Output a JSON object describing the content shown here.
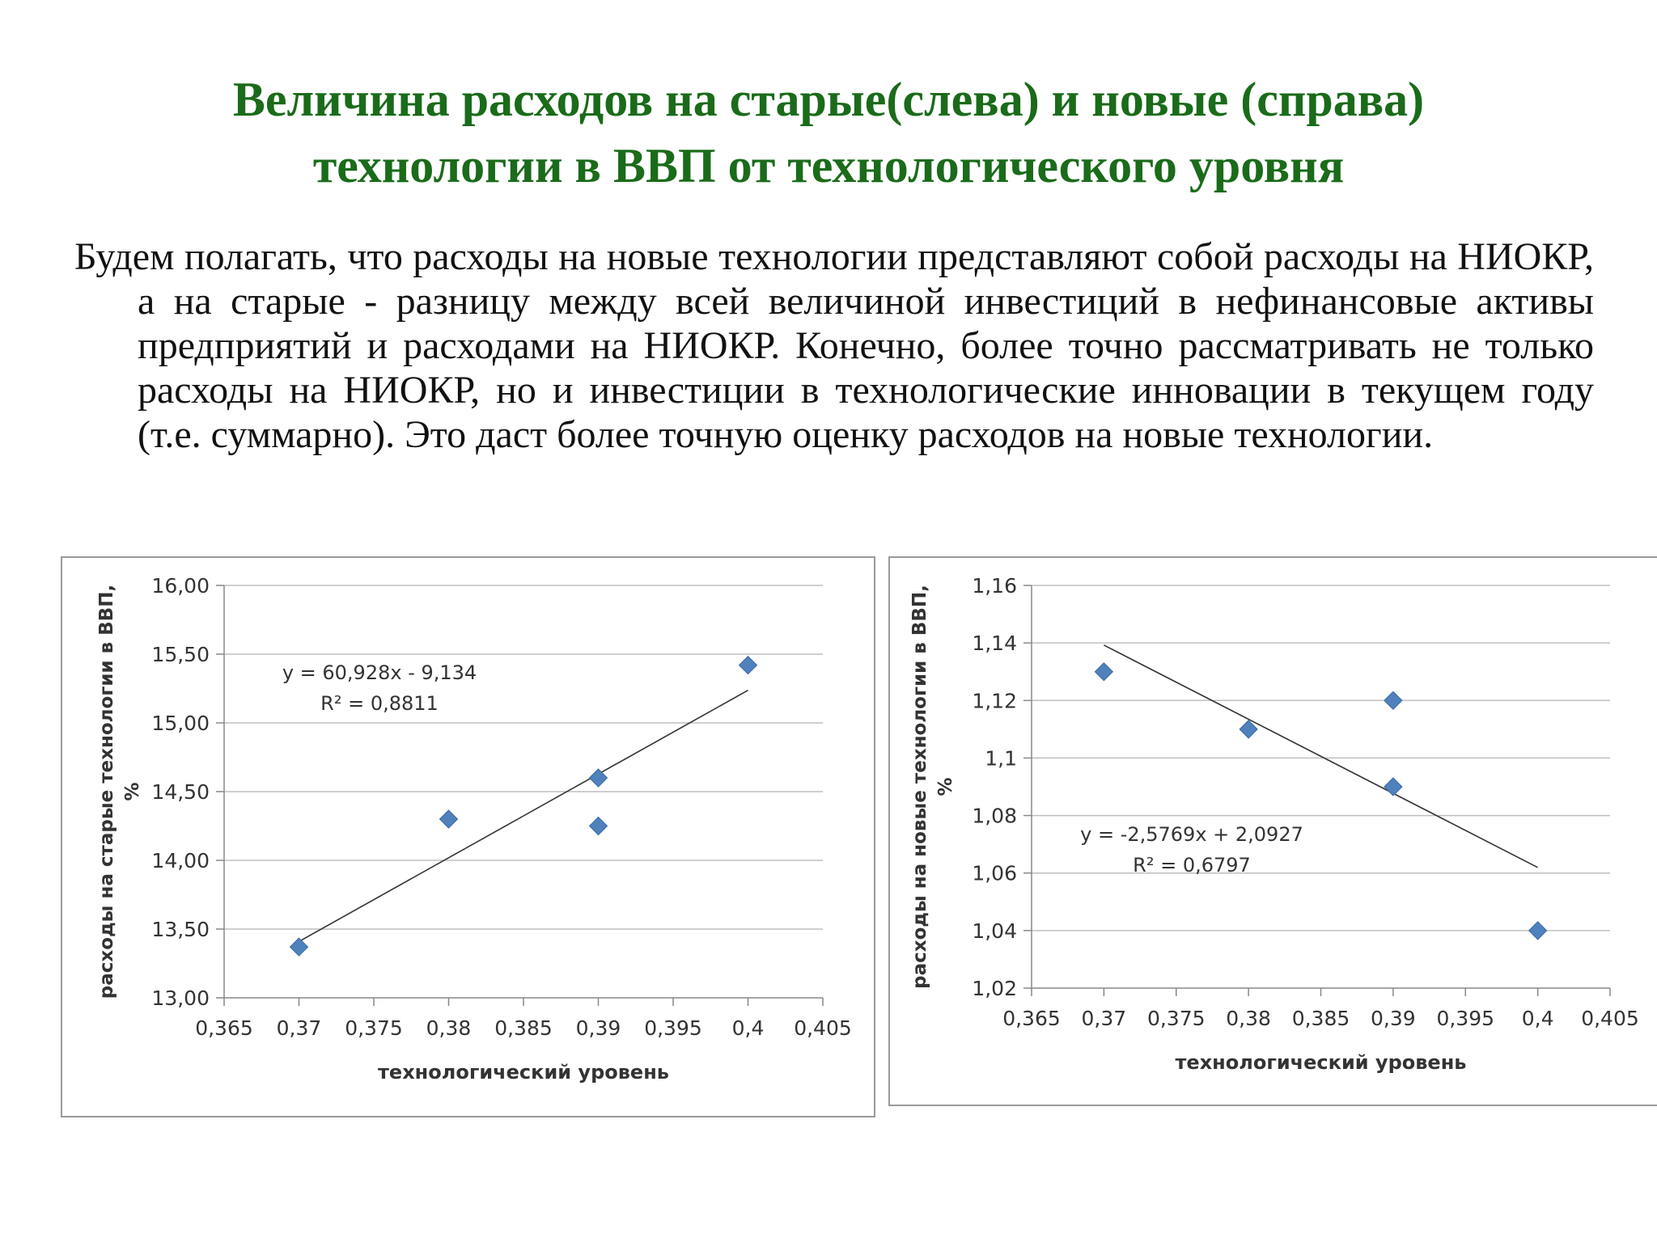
{
  "slide": {
    "title_line1": "Величина расходов на старые(слева) и новые (справа)",
    "title_line2": "технологии в ВВП от технологического уровня",
    "paragraph": "Будем полагать, что расходы на новые технологии представляют собой расходы на НИОКР, а на старые - разницу между всей величиной инвестиций в нефинансовые активы предприятий и расходами на НИОКР. Конечно, более точно рассматривать не только расходы на НИОКР, но и инвестиции в технологические инновации в текущем году (т.е. суммарно). Это даст более точную оценку расходов на новые технологии."
  },
  "colors": {
    "title": "#1a6b1a",
    "marker": "#4f81bd",
    "gridline": "#bfbfbf",
    "trendline": "#333333"
  },
  "chart_data": [
    {
      "type": "scatter",
      "xlabel": "технологический уровень",
      "ylabel": "расходы на старые технологии в ВВП, %",
      "xlim": [
        0.365,
        0.405
      ],
      "ylim": [
        13.0,
        16.0
      ],
      "x_ticks": [
        "0,365",
        "0,37",
        "0,375",
        "0,38",
        "0,385",
        "0,39",
        "0,395",
        "0,4",
        "0,405"
      ],
      "y_ticks": [
        "13,00",
        "13,50",
        "14,00",
        "14,50",
        "15,00",
        "15,50",
        "16,00"
      ],
      "grid": true,
      "points": [
        {
          "x": 0.37,
          "y": 13.37
        },
        {
          "x": 0.38,
          "y": 14.3
        },
        {
          "x": 0.39,
          "y": 14.6
        },
        {
          "x": 0.39,
          "y": 14.25
        },
        {
          "x": 0.4,
          "y": 15.42
        }
      ],
      "trendline": {
        "slope": 60.928,
        "intercept": -9.134,
        "x_from": 0.37,
        "x_to": 0.4
      },
      "equation": "y = 60,928x - 9,134",
      "r2": "R² = 0,8811"
    },
    {
      "type": "scatter",
      "xlabel": "технологический уровень",
      "ylabel": "расходы на новые технологии в ВВП, %",
      "xlim": [
        0.365,
        0.405
      ],
      "ylim": [
        1.02,
        1.16
      ],
      "x_ticks": [
        "0,365",
        "0,37",
        "0,375",
        "0,38",
        "0,385",
        "0,39",
        "0,395",
        "0,4",
        "0,405"
      ],
      "y_ticks": [
        "1,02",
        "1,04",
        "1,06",
        "1,08",
        "1,1",
        "1,12",
        "1,14",
        "1,16"
      ],
      "grid": true,
      "points": [
        {
          "x": 0.37,
          "y": 1.13
        },
        {
          "x": 0.38,
          "y": 1.11
        },
        {
          "x": 0.39,
          "y": 1.12
        },
        {
          "x": 0.39,
          "y": 1.09
        },
        {
          "x": 0.4,
          "y": 1.04
        }
      ],
      "trendline": {
        "slope": -2.5769,
        "intercept": 2.0927,
        "x_from": 0.37,
        "x_to": 0.4
      },
      "equation": "y = -2,5769x + 2,0927",
      "r2": "R² = 0,6797"
    }
  ]
}
